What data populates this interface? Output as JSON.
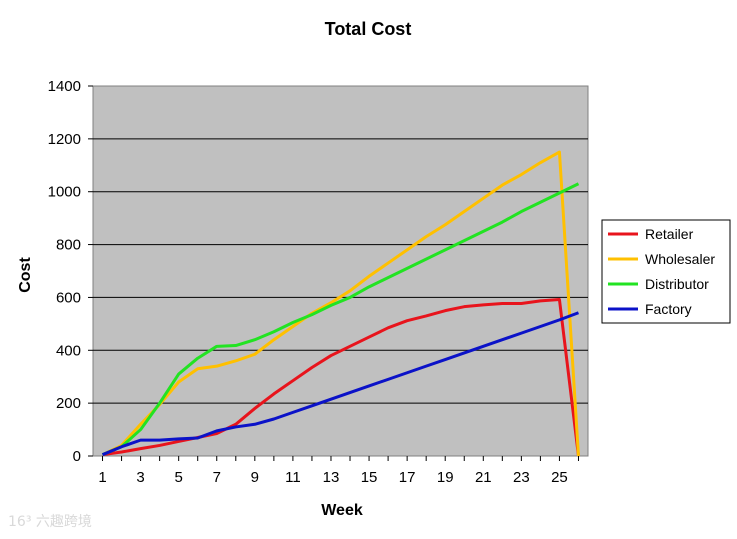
{
  "chart_data": {
    "type": "line",
    "title": "Total Cost",
    "xlabel": "Week",
    "ylabel": "Cost",
    "xlim": [
      1,
      26
    ],
    "ylim": [
      0,
      1400
    ],
    "y_ticks": [
      0,
      200,
      400,
      600,
      800,
      1000,
      1200,
      1400
    ],
    "x_tick_labels": [
      "1",
      "3",
      "5",
      "7",
      "9",
      "11",
      "13",
      "15",
      "17",
      "19",
      "21",
      "23",
      "25"
    ],
    "x": [
      1,
      2,
      3,
      4,
      5,
      6,
      7,
      8,
      9,
      10,
      11,
      12,
      13,
      14,
      15,
      16,
      17,
      18,
      19,
      20,
      21,
      22,
      23,
      24,
      25,
      26
    ],
    "grid": "horizontal",
    "plot_background": "#c0c0c0",
    "legend_position": "right",
    "series": [
      {
        "name": "Retailer",
        "color": "#e8141c",
        "values": [
          5,
          15,
          28,
          40,
          55,
          70,
          85,
          120,
          180,
          235,
          285,
          335,
          380,
          415,
          450,
          485,
          512,
          530,
          550,
          565,
          572,
          577,
          577,
          587,
          592,
          0
        ]
      },
      {
        "name": "Wholesaler",
        "color": "#ffc000",
        "values": [
          5,
          40,
          120,
          195,
          280,
          330,
          340,
          360,
          385,
          440,
          490,
          540,
          580,
          625,
          680,
          730,
          780,
          830,
          875,
          925,
          975,
          1025,
          1065,
          1110,
          1150,
          0
        ]
      },
      {
        "name": "Distributor",
        "color": "#22e322",
        "values": [
          5,
          35,
          100,
          200,
          310,
          370,
          415,
          418,
          440,
          470,
          505,
          535,
          570,
          600,
          640,
          675,
          710,
          745,
          780,
          815,
          850,
          885,
          925,
          960,
          995,
          1030
        ]
      },
      {
        "name": "Factory",
        "color": "#0b12c8",
        "values": [
          5,
          35,
          60,
          60,
          65,
          68,
          95,
          110,
          120,
          140,
          165,
          190,
          215,
          240,
          265,
          290,
          315,
          340,
          365,
          390,
          415,
          440,
          465,
          490,
          515,
          542
        ]
      }
    ]
  },
  "watermark": "16³ 六趣跨境"
}
